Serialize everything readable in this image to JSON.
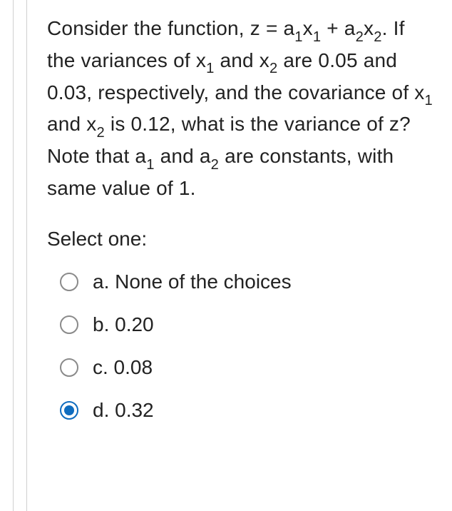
{
  "question": {
    "segments": [
      {
        "t": "Consider the function, z = a"
      },
      {
        "t": "1",
        "sub": true
      },
      {
        "t": "x"
      },
      {
        "t": "1",
        "sub": true
      },
      {
        "t": " + a"
      },
      {
        "t": "2",
        "sub": true
      },
      {
        "t": "x"
      },
      {
        "t": "2",
        "sub": true
      },
      {
        "t": ". If the variances of x"
      },
      {
        "t": "1",
        "sub": true
      },
      {
        "t": " and x"
      },
      {
        "t": "2",
        "sub": true
      },
      {
        "t": " are 0.05 and 0.03, respectively, and the covariance of x"
      },
      {
        "t": "1",
        "sub": true
      },
      {
        "t": " and x"
      },
      {
        "t": "2",
        "sub": true
      },
      {
        "t": " is 0.12, what is the variance of z? Note that a"
      },
      {
        "t": "1",
        "sub": true
      },
      {
        "t": " and a"
      },
      {
        "t": "2",
        "sub": true
      },
      {
        "t": " are constants, with same value of 1."
      }
    ]
  },
  "prompt": "Select one:",
  "options": [
    {
      "label": "a. None of the choices",
      "selected": false
    },
    {
      "label": "b. 0.20",
      "selected": false
    },
    {
      "label": "c. 0.08",
      "selected": false
    },
    {
      "label": "d. 0.32",
      "selected": true
    }
  ],
  "colors": {
    "text": "#222222",
    "radio_border": "#8a8a8a",
    "radio_selected": "#0f6cbf",
    "divider": "#d0d0d0",
    "background": "#ffffff"
  },
  "typography": {
    "font_size_pt": 21,
    "line_height": 1.45
  }
}
